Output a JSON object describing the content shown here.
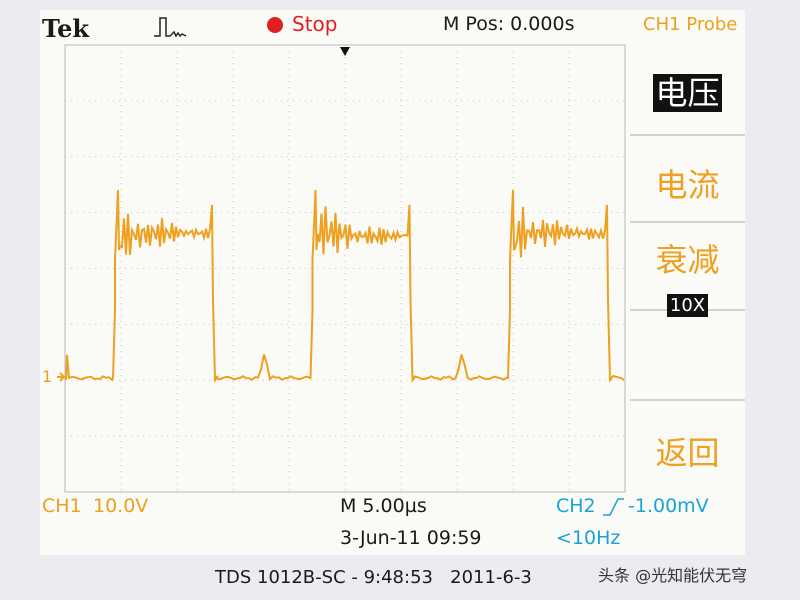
{
  "header": {
    "brand": "Tek",
    "status": "Stop",
    "position": "M Pos: 0.000s",
    "menu_title": "CH1 Probe"
  },
  "menu": {
    "items": [
      {
        "label": "电压"
      },
      {
        "label": "电流"
      },
      {
        "label": "衰减",
        "value": "10X"
      },
      {
        "label": "返回"
      }
    ]
  },
  "screen": {
    "channel_marker": "1"
  },
  "status_bar": {
    "ch1": "CH1",
    "ch1_scale": "10.0V",
    "timebase": "M 5.00µs",
    "date": "3-Jun-11 09:59",
    "trigger_channel": "CH2",
    "trigger_level": "-1.00mV",
    "trigger_freq": "<10Hz"
  },
  "footer": {
    "caption": "TDS 1012B-SC - 9:48:53   2011-6-3",
    "watermark": "头条 @光知能伏无穹"
  }
}
